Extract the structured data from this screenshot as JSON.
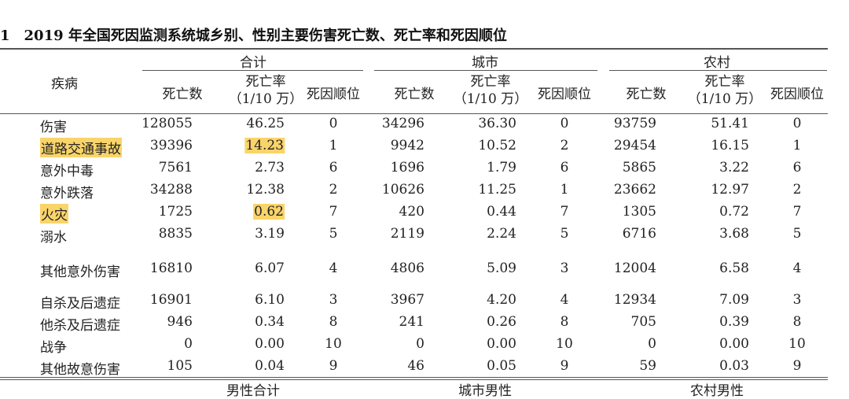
{
  "title": "1　2019 年全国死因监测系统城乡别、性别主要伤害死亡数、死亡率和死因顺位",
  "header": {
    "disease": "疾病",
    "groups": [
      "合计",
      "城市",
      "农村"
    ],
    "count": "死亡数",
    "rate_line1": "死亡率",
    "rate_line2": "（1/10 万）",
    "rank": "死因顺位"
  },
  "highlight_color": "#f9d46a",
  "rows": [
    {
      "name": "伤害",
      "v": [
        "128055",
        "46.25",
        "0",
        "34296",
        "36.30",
        "0",
        "93759",
        "51.41",
        "0"
      ]
    },
    {
      "name": "道路交通事故",
      "hl": true,
      "v": [
        "39396",
        "14.23",
        "1",
        "9942",
        "10.52",
        "2",
        "29454",
        "16.15",
        "1"
      ]
    },
    {
      "name": "意外中毒",
      "v": [
        "7561",
        "2.73",
        "6",
        "1696",
        "1.79",
        "6",
        "5865",
        "3.22",
        "6"
      ]
    },
    {
      "name": "意外跌落",
      "v": [
        "34288",
        "12.38",
        "2",
        "10626",
        "11.25",
        "1",
        "23662",
        "12.97",
        "2"
      ]
    },
    {
      "name": "火灾",
      "hl": true,
      "v": [
        "1725",
        "0.62",
        "7",
        "420",
        "0.44",
        "7",
        "1305",
        "0.72",
        "7"
      ]
    },
    {
      "name": "溺水",
      "v": [
        "8835",
        "3.19",
        "5",
        "2119",
        "2.24",
        "5",
        "6716",
        "3.68",
        "5"
      ]
    },
    {
      "name": "其他意外伤害",
      "v": [
        "16810",
        "6.07",
        "4",
        "4806",
        "5.09",
        "3",
        "12004",
        "6.58",
        "4"
      ]
    },
    {
      "name": "自杀及后遗症",
      "v": [
        "16901",
        "6.10",
        "3",
        "3967",
        "4.20",
        "4",
        "12934",
        "7.09",
        "3"
      ]
    },
    {
      "name": "他杀及后遗症",
      "v": [
        "946",
        "0.34",
        "8",
        "241",
        "0.26",
        "8",
        "705",
        "0.39",
        "8"
      ]
    },
    {
      "name": "战争",
      "v": [
        "0",
        "0.00",
        "10",
        "0",
        "0.00",
        "10",
        "0",
        "0.00",
        "10"
      ]
    },
    {
      "name": "其他故意伤害",
      "v": [
        "105",
        "0.04",
        "9",
        "46",
        "0.05",
        "9",
        "59",
        "0.03",
        "9"
      ]
    }
  ],
  "next_groups": [
    "男性合计",
    "城市男性",
    "农村男性"
  ]
}
